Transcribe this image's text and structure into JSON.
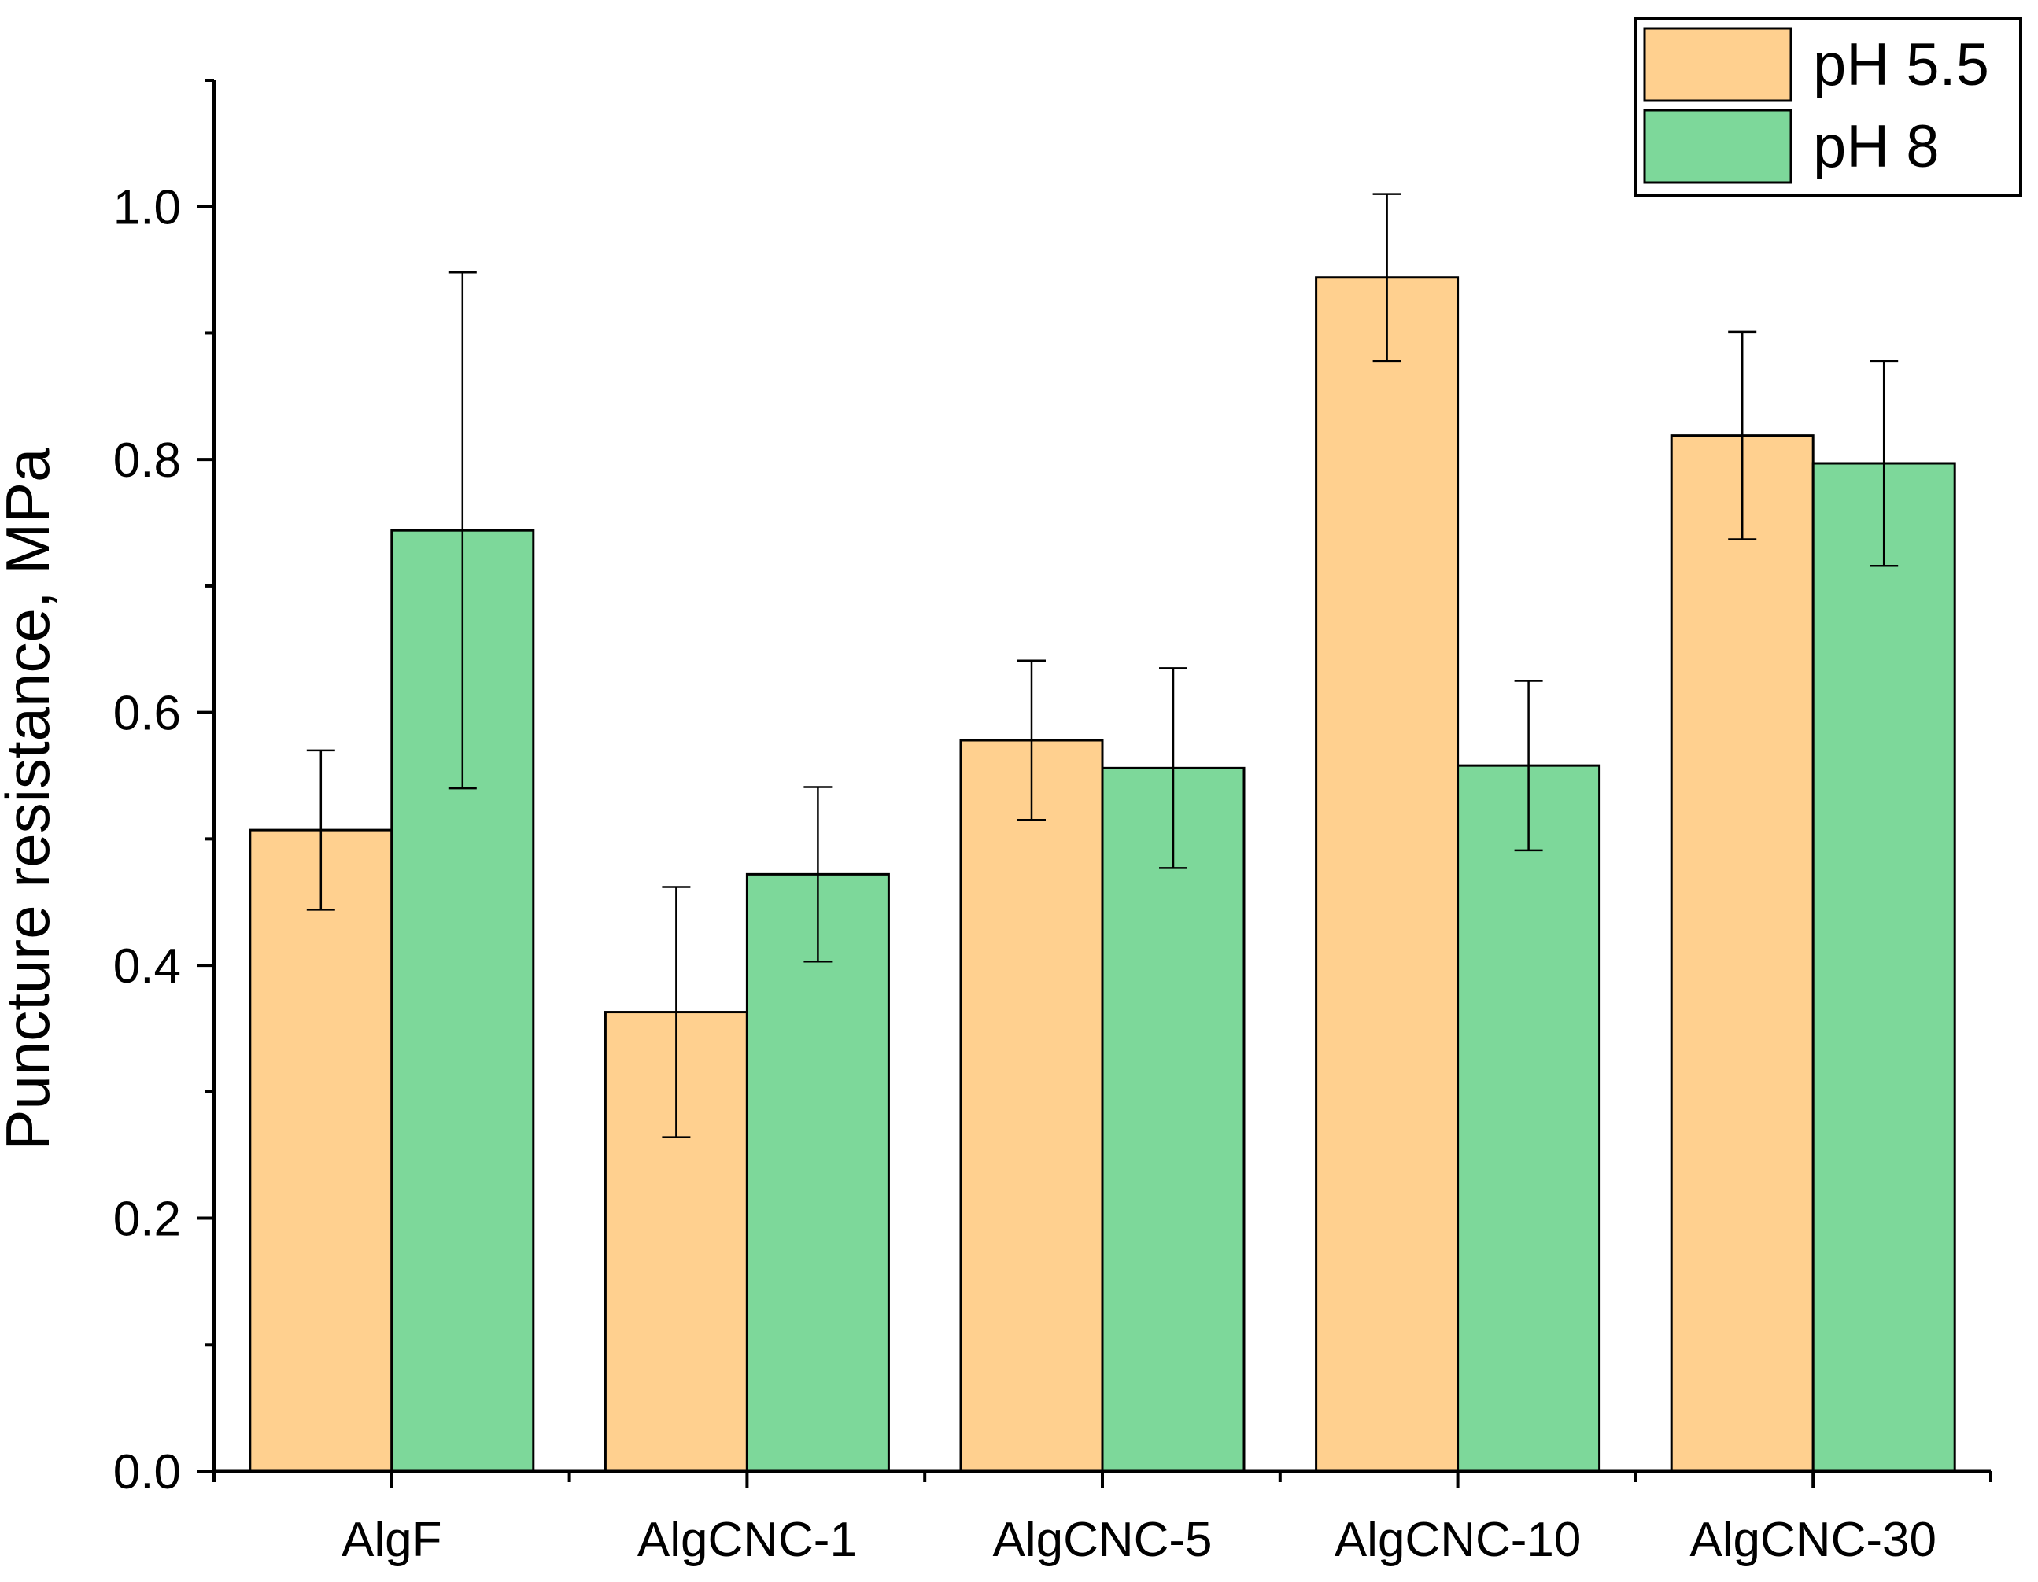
{
  "chart_data": {
    "type": "bar",
    "title": "",
    "xlabel": "",
    "ylabel": "Puncture resistance, MPa",
    "ylim": [
      0,
      1.1
    ],
    "yticks": [
      "0.0",
      "0.2",
      "0.4",
      "0.6",
      "0.8",
      "1.0"
    ],
    "ytick_values": [
      0,
      0.2,
      0.4,
      0.6,
      0.8,
      1.0
    ],
    "categories": [
      "AlgF",
      "AlgCNC-1",
      "AlgCNC-5",
      "AlgCNC-10",
      "AlgCNC-30"
    ],
    "series": [
      {
        "name": "pH 5.5",
        "color": "#FFD08F",
        "values": [
          0.507,
          0.363,
          0.578,
          0.944,
          0.819
        ],
        "errors": [
          0.063,
          0.099,
          0.063,
          0.066,
          0.082
        ]
      },
      {
        "name": "pH 8",
        "color": "#7DD89A",
        "values": [
          0.744,
          0.472,
          0.556,
          0.558,
          0.797
        ],
        "errors": [
          0.204,
          0.069,
          0.079,
          0.067,
          0.081
        ]
      }
    ],
    "legend_position": "top-right",
    "grid": false
  }
}
